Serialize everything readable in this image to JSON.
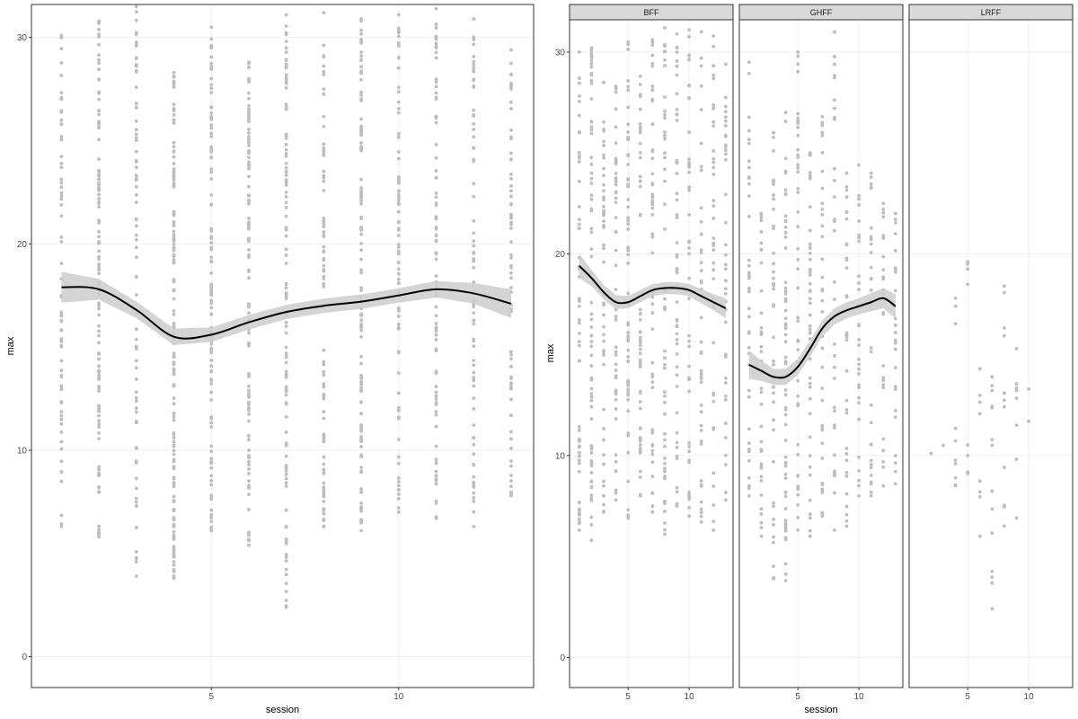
{
  "colors": {
    "points": "#bdbdbd",
    "smooth_line": "#000000",
    "ribbon": "#cccccc",
    "gridline": "#ebebeb",
    "panel_border": "#333333",
    "strip_fill": "#d9d9d9",
    "background": "#ffffff"
  },
  "chart_data": [
    {
      "type": "scatter",
      "facet": false,
      "xlabel": "session",
      "ylabel": "max",
      "xlim": [
        0.2,
        13.6
      ],
      "ylim": [
        -1.5,
        31.6
      ],
      "x_ticks": [
        5,
        10
      ],
      "y_ticks": [
        0,
        10,
        20,
        30
      ],
      "grid": true,
      "smooth": {
        "x": [
          1,
          2,
          3,
          4,
          5,
          6,
          7,
          8,
          9,
          10,
          11,
          12,
          13
        ],
        "y": [
          17.9,
          17.8,
          16.8,
          15.5,
          15.6,
          16.2,
          16.7,
          17.0,
          17.2,
          17.5,
          17.8,
          17.6,
          17.1
        ],
        "se": [
          0.75,
          0.5,
          0.4,
          0.4,
          0.35,
          0.35,
          0.35,
          0.35,
          0.35,
          0.35,
          0.4,
          0.5,
          0.7
        ]
      },
      "point_columns": [
        {
          "x": 1,
          "min": 6.3,
          "max": 30.1,
          "count": 70
        },
        {
          "x": 2,
          "min": 5.8,
          "max": 30.8,
          "count": 120
        },
        {
          "x": 3,
          "min": 3.9,
          "max": 31.5,
          "count": 80
        },
        {
          "x": 4,
          "min": 3.8,
          "max": 28.3,
          "count": 140
        },
        {
          "x": 5,
          "min": 6.1,
          "max": 30.5,
          "count": 110
        },
        {
          "x": 6,
          "min": 5.4,
          "max": 28.8,
          "count": 100
        },
        {
          "x": 7,
          "min": 2.4,
          "max": 31.1,
          "count": 110
        },
        {
          "x": 8,
          "min": 6.3,
          "max": 31.2,
          "count": 90
        },
        {
          "x": 9,
          "min": 6.1,
          "max": 30.9,
          "count": 110
        },
        {
          "x": 10,
          "min": 7.0,
          "max": 31.1,
          "count": 80
        },
        {
          "x": 11,
          "min": 6.7,
          "max": 31.4,
          "count": 90
        },
        {
          "x": 12,
          "min": 6.3,
          "max": 30.9,
          "count": 80
        },
        {
          "x": 13,
          "min": 7.8,
          "max": 29.4,
          "count": 70
        }
      ]
    },
    {
      "type": "scatter",
      "facet": true,
      "xlabel": "session",
      "ylabel": "max",
      "xlim": [
        0.2,
        13.6
      ],
      "ylim": [
        -1.5,
        31.6
      ],
      "x_ticks": [
        5,
        10
      ],
      "y_ticks": [
        0,
        10,
        20,
        30
      ],
      "grid": true,
      "panels": [
        {
          "name": "BFF",
          "smooth": {
            "x": [
              1,
              2,
              3,
              4,
              5,
              6,
              7,
              8,
              9,
              10,
              11,
              12,
              13
            ],
            "y": [
              19.4,
              18.8,
              18.1,
              17.6,
              17.6,
              17.9,
              18.2,
              18.3,
              18.3,
              18.2,
              17.9,
              17.6,
              17.3
            ],
            "se": [
              0.6,
              0.4,
              0.35,
              0.35,
              0.3,
              0.3,
              0.3,
              0.3,
              0.3,
              0.3,
              0.35,
              0.4,
              0.5
            ]
          },
          "point_columns": [
            {
              "x": 1,
              "min": 6.3,
              "max": 30.0,
              "count": 60
            },
            {
              "x": 2,
              "min": 5.8,
              "max": 30.2,
              "count": 70
            },
            {
              "x": 3,
              "min": 7.2,
              "max": 28.5,
              "count": 50
            },
            {
              "x": 4,
              "min": 7.8,
              "max": 28.3,
              "count": 50
            },
            {
              "x": 5,
              "min": 6.9,
              "max": 30.5,
              "count": 60
            },
            {
              "x": 6,
              "min": 8.0,
              "max": 28.8,
              "count": 55
            },
            {
              "x": 7,
              "min": 7.2,
              "max": 30.6,
              "count": 55
            },
            {
              "x": 8,
              "min": 6.1,
              "max": 31.2,
              "count": 50
            },
            {
              "x": 9,
              "min": 7.5,
              "max": 30.9,
              "count": 50
            },
            {
              "x": 10,
              "min": 7.0,
              "max": 31.1,
              "count": 45
            },
            {
              "x": 11,
              "min": 6.7,
              "max": 31.0,
              "count": 45
            },
            {
              "x": 12,
              "min": 6.3,
              "max": 30.8,
              "count": 40
            },
            {
              "x": 13,
              "min": 7.8,
              "max": 29.4,
              "count": 40
            }
          ]
        },
        {
          "name": "GHFF",
          "smooth": {
            "x": [
              1,
              2,
              3,
              4,
              5,
              6,
              7,
              8,
              9,
              10,
              11,
              12,
              13
            ],
            "y": [
              14.5,
              14.2,
              13.9,
              13.9,
              14.4,
              15.3,
              16.3,
              16.9,
              17.2,
              17.4,
              17.6,
              17.8,
              17.4
            ],
            "se": [
              0.7,
              0.5,
              0.4,
              0.4,
              0.4,
              0.4,
              0.4,
              0.4,
              0.4,
              0.4,
              0.45,
              0.5,
              0.6
            ]
          },
          "point_columns": [
            {
              "x": 1,
              "min": 8.0,
              "max": 29.5,
              "count": 40
            },
            {
              "x": 2,
              "min": 6.0,
              "max": 22.0,
              "count": 35
            },
            {
              "x": 3,
              "min": 3.9,
              "max": 26.0,
              "count": 40
            },
            {
              "x": 4,
              "min": 3.8,
              "max": 27.0,
              "count": 60
            },
            {
              "x": 5,
              "min": 6.3,
              "max": 30.0,
              "count": 45
            },
            {
              "x": 6,
              "min": 6.0,
              "max": 25.0,
              "count": 45
            },
            {
              "x": 7,
              "min": 7.0,
              "max": 26.8,
              "count": 40
            },
            {
              "x": 8,
              "min": 6.3,
              "max": 31.0,
              "count": 35
            },
            {
              "x": 9,
              "min": 6.5,
              "max": 24.0,
              "count": 35
            },
            {
              "x": 10,
              "min": 8.0,
              "max": 24.4,
              "count": 30
            },
            {
              "x": 11,
              "min": 8.0,
              "max": 24.0,
              "count": 30
            },
            {
              "x": 12,
              "min": 8.5,
              "max": 22.5,
              "count": 25
            },
            {
              "x": 13,
              "min": 8.6,
              "max": 22.0,
              "count": 25
            }
          ]
        },
        {
          "name": "LRFF",
          "smooth": null,
          "point_columns": [
            {
              "x": 2,
              "min": 10.1,
              "max": 10.1,
              "count": 1
            },
            {
              "x": 3,
              "min": 10.5,
              "max": 10.5,
              "count": 1
            },
            {
              "x": 4,
              "min": 8.5,
              "max": 17.8,
              "count": 10
            },
            {
              "x": 5,
              "min": 9.1,
              "max": 19.6,
              "count": 8
            },
            {
              "x": 6,
              "min": 6.0,
              "max": 14.3,
              "count": 8
            },
            {
              "x": 7,
              "min": 2.4,
              "max": 13.9,
              "count": 14
            },
            {
              "x": 8,
              "min": 6.5,
              "max": 18.4,
              "count": 12
            },
            {
              "x": 9,
              "min": 6.9,
              "max": 15.3,
              "count": 8
            },
            {
              "x": 10,
              "min": 11.7,
              "max": 13.3,
              "count": 2
            }
          ]
        }
      ]
    }
  ]
}
